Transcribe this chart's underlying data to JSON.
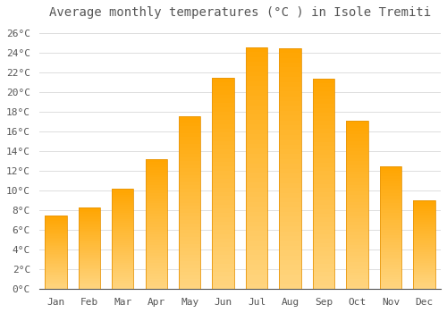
{
  "title": "Average monthly temperatures (°C ) in Isole Tremiti",
  "months": [
    "Jan",
    "Feb",
    "Mar",
    "Apr",
    "May",
    "Jun",
    "Jul",
    "Aug",
    "Sep",
    "Oct",
    "Nov",
    "Dec"
  ],
  "values": [
    7.5,
    8.3,
    10.2,
    13.2,
    17.6,
    21.5,
    24.6,
    24.5,
    21.4,
    17.1,
    12.5,
    9.0
  ],
  "bar_color_top": "#FFA500",
  "bar_color_bottom": "#FFD580",
  "bar_edge_color": "#E8960A",
  "background_color": "#FFFFFF",
  "grid_color": "#DDDDDD",
  "text_color": "#555555",
  "ylim": [
    0,
    27
  ],
  "yticks": [
    0,
    2,
    4,
    6,
    8,
    10,
    12,
    14,
    16,
    18,
    20,
    22,
    24,
    26
  ],
  "title_fontsize": 10,
  "tick_fontsize": 8,
  "bar_width": 0.65
}
